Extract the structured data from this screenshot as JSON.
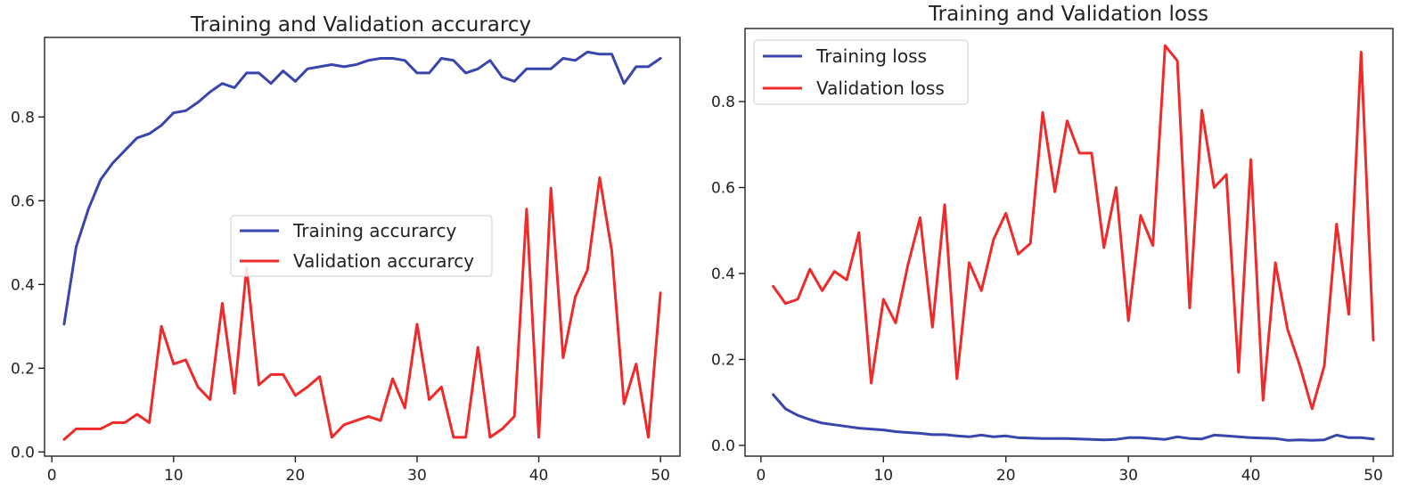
{
  "chart_data": [
    {
      "type": "line",
      "title": "Training and Validation accurarcy",
      "xlabel": "",
      "ylabel": "",
      "xlim": [
        -0.6,
        51.6
      ],
      "ylim": [
        -0.01,
        0.99
      ],
      "xticks": [
        0,
        10,
        20,
        30,
        40,
        50
      ],
      "yticks": [
        0.0,
        0.2,
        0.4,
        0.6,
        0.8
      ],
      "xtick_labels": [
        "0",
        "10",
        "20",
        "30",
        "40",
        "50"
      ],
      "ytick_labels": [
        "0.0",
        "0.2",
        "0.4",
        "0.6",
        "0.8"
      ],
      "legend_position": "center-right",
      "grid": false,
      "x": [
        1,
        2,
        3,
        4,
        5,
        6,
        7,
        8,
        9,
        10,
        11,
        12,
        13,
        14,
        15,
        16,
        17,
        18,
        19,
        20,
        21,
        22,
        23,
        24,
        25,
        26,
        27,
        28,
        29,
        30,
        31,
        32,
        33,
        34,
        35,
        36,
        37,
        38,
        39,
        40,
        41,
        42,
        43,
        44,
        45,
        46,
        47,
        48,
        49,
        50
      ],
      "series": [
        {
          "name": "Training accurarcy",
          "color": "#3845ac",
          "values": [
            0.305,
            0.49,
            0.58,
            0.65,
            0.69,
            0.72,
            0.75,
            0.76,
            0.78,
            0.81,
            0.815,
            0.835,
            0.86,
            0.88,
            0.87,
            0.905,
            0.905,
            0.88,
            0.91,
            0.885,
            0.915,
            0.92,
            0.925,
            0.92,
            0.925,
            0.935,
            0.94,
            0.94,
            0.935,
            0.905,
            0.905,
            0.94,
            0.935,
            0.905,
            0.915,
            0.935,
            0.895,
            0.885,
            0.915,
            0.915,
            0.915,
            0.94,
            0.935,
            0.955,
            0.95,
            0.95,
            0.88,
            0.92,
            0.92,
            0.94
          ]
        },
        {
          "name": "Validation accurarcy",
          "color": "#ee2a2a",
          "values": [
            0.03,
            0.055,
            0.055,
            0.055,
            0.07,
            0.07,
            0.09,
            0.07,
            0.3,
            0.21,
            0.22,
            0.155,
            0.125,
            0.355,
            0.14,
            0.44,
            0.16,
            0.185,
            0.185,
            0.135,
            0.155,
            0.18,
            0.035,
            0.065,
            0.075,
            0.085,
            0.075,
            0.175,
            0.105,
            0.305,
            0.125,
            0.155,
            0.035,
            0.035,
            0.25,
            0.035,
            0.055,
            0.085,
            0.58,
            0.035,
            0.63,
            0.225,
            0.37,
            0.435,
            0.655,
            0.48,
            0.115,
            0.21,
            0.035,
            0.38
          ]
        }
      ]
    },
    {
      "type": "line",
      "title": "Training and Validation loss",
      "xlabel": "",
      "ylabel": "",
      "xlim": [
        -1.3,
        51.6
      ],
      "ylim": [
        -0.025,
        0.97
      ],
      "xticks": [
        0,
        10,
        20,
        30,
        40,
        50
      ],
      "yticks": [
        0.0,
        0.2,
        0.4,
        0.6,
        0.8
      ],
      "xtick_labels": [
        "0",
        "10",
        "20",
        "30",
        "40",
        "50"
      ],
      "ytick_labels": [
        "0.0",
        "0.2",
        "0.4",
        "0.6",
        "0.8"
      ],
      "legend_position": "top-left",
      "grid": false,
      "x": [
        1,
        2,
        3,
        4,
        5,
        6,
        7,
        8,
        9,
        10,
        11,
        12,
        13,
        14,
        15,
        16,
        17,
        18,
        19,
        20,
        21,
        22,
        23,
        24,
        25,
        26,
        27,
        28,
        29,
        30,
        31,
        32,
        33,
        34,
        35,
        36,
        37,
        38,
        39,
        40,
        41,
        42,
        43,
        44,
        45,
        46,
        47,
        48,
        49,
        50
      ],
      "series": [
        {
          "name": "Training loss",
          "color": "#3845ac",
          "values": [
            0.118,
            0.085,
            0.07,
            0.06,
            0.052,
            0.048,
            0.044,
            0.04,
            0.038,
            0.036,
            0.032,
            0.03,
            0.028,
            0.025,
            0.025,
            0.022,
            0.02,
            0.024,
            0.02,
            0.022,
            0.018,
            0.017,
            0.016,
            0.016,
            0.016,
            0.015,
            0.014,
            0.013,
            0.014,
            0.018,
            0.018,
            0.016,
            0.014,
            0.02,
            0.016,
            0.015,
            0.024,
            0.022,
            0.02,
            0.018,
            0.017,
            0.016,
            0.012,
            0.013,
            0.012,
            0.013,
            0.024,
            0.018,
            0.018,
            0.015
          ]
        },
        {
          "name": "Validation loss",
          "color": "#ee2a2a",
          "values": [
            0.37,
            0.33,
            0.34,
            0.41,
            0.36,
            0.405,
            0.385,
            0.495,
            0.145,
            0.34,
            0.285,
            0.42,
            0.53,
            0.275,
            0.56,
            0.155,
            0.425,
            0.36,
            0.48,
            0.54,
            0.445,
            0.47,
            0.775,
            0.59,
            0.755,
            0.68,
            0.68,
            0.46,
            0.6,
            0.29,
            0.535,
            0.465,
            0.93,
            0.895,
            0.32,
            0.78,
            0.6,
            0.63,
            0.17,
            0.665,
            0.105,
            0.425,
            0.27,
            0.185,
            0.085,
            0.185,
            0.515,
            0.305,
            0.915,
            0.245
          ]
        }
      ]
    }
  ]
}
